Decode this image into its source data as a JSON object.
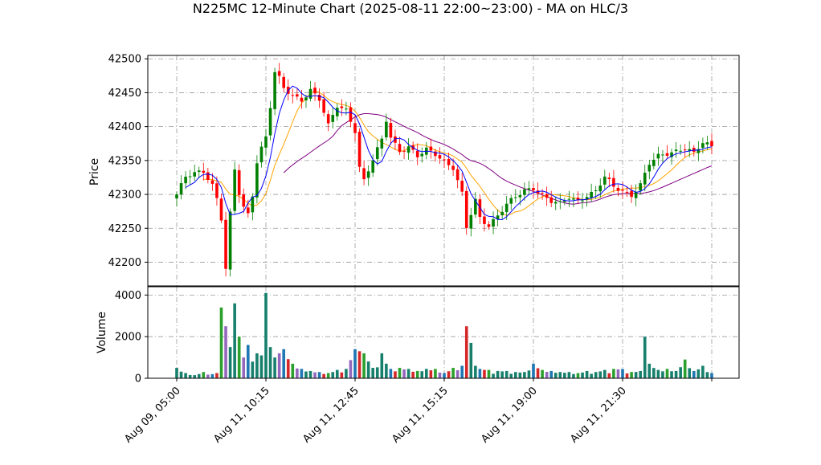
{
  "chart_data": {
    "type": "candlestick",
    "title": "N225MC 12-Minute Chart (2025-08-11 22:00~23:00) - MA on HLC/3",
    "price_panel": {
      "ylabel": "Price",
      "ylim": [
        42165,
        42505
      ],
      "yticks": [
        42200,
        42250,
        42300,
        42350,
        42400,
        42450,
        42500
      ],
      "grid": true
    },
    "volume_panel": {
      "ylabel": "Volume",
      "ylim": [
        0,
        4400
      ],
      "yticks": [
        0,
        2000,
        4000
      ],
      "grid": true
    },
    "x_axis": {
      "n_bars": 121,
      "ticks": [
        {
          "bar": 0,
          "label": "Aug 09, 05:00"
        },
        {
          "bar": 20,
          "label": "Aug 11, 10:15"
        },
        {
          "bar": 40,
          "label": "Aug 11, 12:45"
        },
        {
          "bar": 60,
          "label": "Aug 11, 15:15"
        },
        {
          "bar": 80,
          "label": "Aug 11, 19:00"
        },
        {
          "bar": 100,
          "label": "Aug 11, 21:30"
        },
        {
          "bar": 120,
          "label": ""
        }
      ]
    },
    "colors": {
      "up": "#008000",
      "down": "#ff0000",
      "ma_fast": "#0000ff",
      "ma_mid": "#ffa500",
      "ma_slow": "#800080"
    },
    "anchors": [
      [
        0,
        42300,
        500
      ],
      [
        2,
        42325,
        250
      ],
      [
        4,
        42330,
        150
      ],
      [
        6,
        42335,
        300
      ],
      [
        8,
        42315,
        200
      ],
      [
        9,
        42295,
        250
      ],
      [
        10,
        42265,
        3400
      ],
      [
        11,
        42190,
        2500
      ],
      [
        12,
        42270,
        1500
      ],
      [
        13,
        42335,
        3600
      ],
      [
        14,
        42300,
        2000
      ],
      [
        15,
        42280,
        1000
      ],
      [
        16,
        42270,
        1600
      ],
      [
        17,
        42300,
        800
      ],
      [
        18,
        42350,
        1200
      ],
      [
        19,
        42370,
        1100
      ],
      [
        20,
        42385,
        4100
      ],
      [
        21,
        42430,
        1500
      ],
      [
        22,
        42480,
        1000
      ],
      [
        23,
        42470,
        1200
      ],
      [
        24,
        42455,
        1400
      ],
      [
        26,
        42445,
        700
      ],
      [
        28,
        42440,
        450
      ],
      [
        30,
        42455,
        350
      ],
      [
        32,
        42440,
        300
      ],
      [
        34,
        42400,
        250
      ],
      [
        36,
        42430,
        400
      ],
      [
        38,
        42425,
        450
      ],
      [
        40,
        42395,
        1400
      ],
      [
        41,
        42340,
        1300
      ],
      [
        42,
        42320,
        1200
      ],
      [
        44,
        42350,
        500
      ],
      [
        46,
        42380,
        1200
      ],
      [
        47,
        42410,
        700
      ],
      [
        48,
        42385,
        450
      ],
      [
        50,
        42365,
        500
      ],
      [
        52,
        42370,
        450
      ],
      [
        54,
        42355,
        350
      ],
      [
        56,
        42365,
        450
      ],
      [
        58,
        42360,
        450
      ],
      [
        60,
        42350,
        250
      ],
      [
        62,
        42340,
        500
      ],
      [
        64,
        42300,
        600
      ],
      [
        65,
        42250,
        2500
      ],
      [
        66,
        42270,
        1700
      ],
      [
        67,
        42290,
        600
      ],
      [
        68,
        42265,
        450
      ],
      [
        70,
        42255,
        400
      ],
      [
        72,
        42270,
        350
      ],
      [
        74,
        42285,
        350
      ],
      [
        76,
        42295,
        300
      ],
      [
        78,
        42305,
        300
      ],
      [
        80,
        42310,
        700
      ],
      [
        82,
        42300,
        400
      ],
      [
        84,
        42290,
        350
      ],
      [
        86,
        42285,
        300
      ],
      [
        88,
        42295,
        300
      ],
      [
        90,
        42290,
        250
      ],
      [
        92,
        42300,
        350
      ],
      [
        94,
        42305,
        300
      ],
      [
        96,
        42325,
        400
      ],
      [
        98,
        42310,
        450
      ],
      [
        100,
        42305,
        450
      ],
      [
        102,
        42300,
        300
      ],
      [
        104,
        42315,
        350
      ],
      [
        105,
        42330,
        2000
      ],
      [
        106,
        42345,
        700
      ],
      [
        108,
        42355,
        400
      ],
      [
        110,
        42360,
        450
      ],
      [
        112,
        42365,
        350
      ],
      [
        114,
        42370,
        900
      ],
      [
        116,
        42360,
        350
      ],
      [
        118,
        42375,
        600
      ],
      [
        120,
        42370,
        250
      ]
    ]
  }
}
